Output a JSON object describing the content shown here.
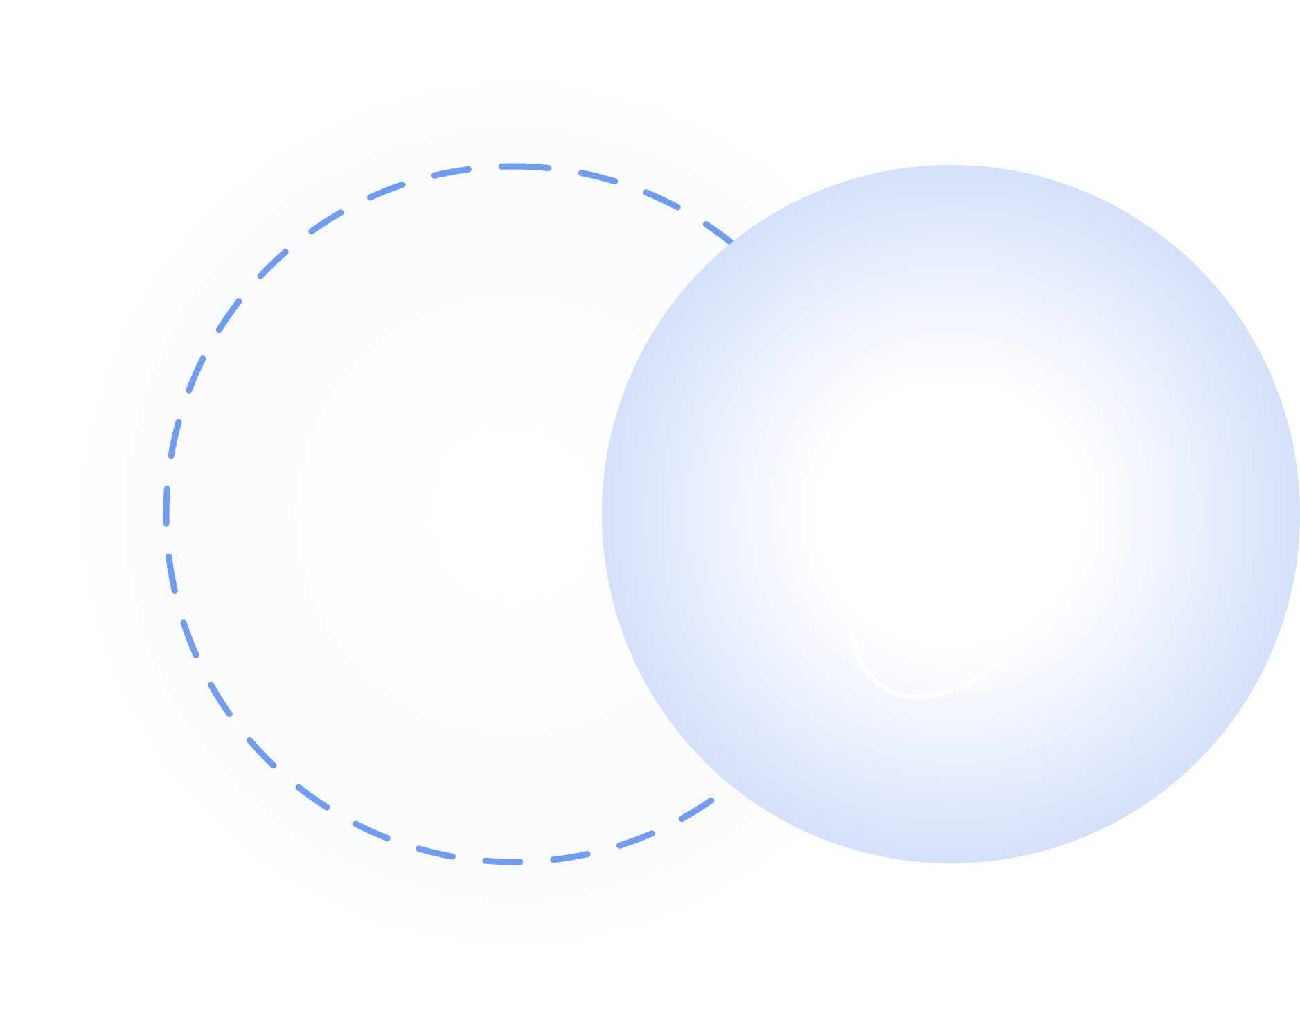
{
  "colors": {
    "background": "#ffffff",
    "dashed_ring": "#6f9df5",
    "orb_center": "#ffffff",
    "orb_edge": "#d5e2fb",
    "glow": "#f4f6f9",
    "icon_stroke": "#ffffff"
  },
  "illustration": {
    "elements": [
      {
        "name": "soft-glow-halo",
        "interactable": false
      },
      {
        "name": "dashed-ring",
        "interactable": false
      },
      {
        "name": "gradient-orb",
        "interactable": false
      },
      {
        "name": "user-icon",
        "interactable": false
      }
    ]
  }
}
